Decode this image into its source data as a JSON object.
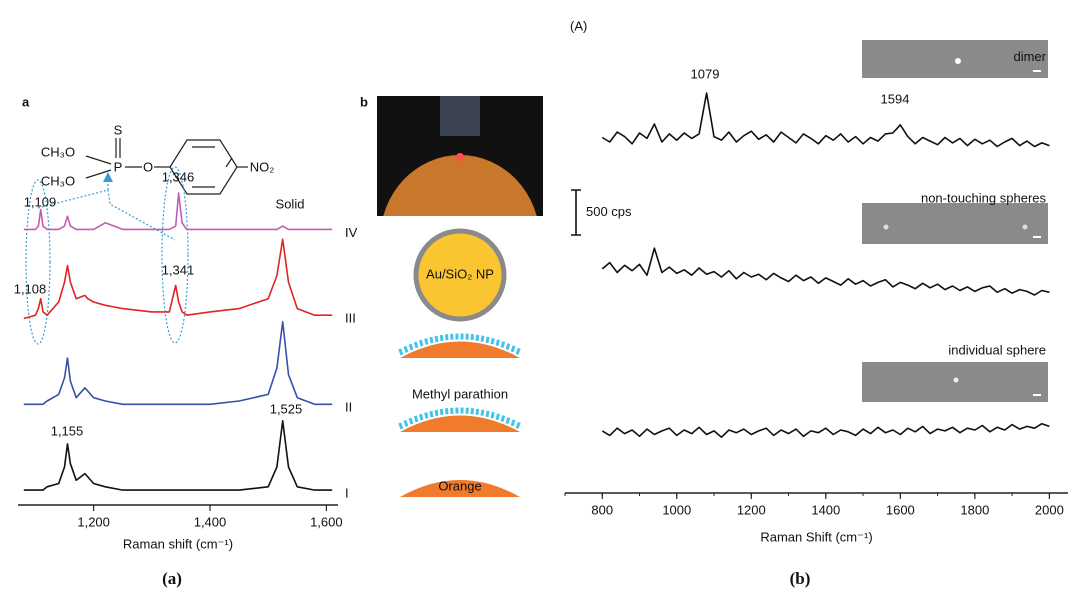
{
  "figure": {
    "captions": [
      "(a)",
      "(b)"
    ],
    "panel_labels": [
      "a",
      "b"
    ],
    "structure": [
      "CH₃O",
      "CH₃O",
      "S",
      "P",
      "O",
      "NO₂"
    ],
    "schematic": [
      "Au/SiO₂ NP",
      "Methyl parathion",
      "Orange"
    ]
  },
  "chart_data": [
    {
      "type": "line",
      "x_label": "Raman shift (cm⁻¹)",
      "x": [
        1080,
        1100,
        1105,
        1109,
        1113,
        1120,
        1140,
        1150,
        1155,
        1160,
        1170,
        1185,
        1190,
        1200,
        1220,
        1250,
        1300,
        1330,
        1341,
        1346,
        1352,
        1360,
        1400,
        1450,
        1500,
        1515,
        1525,
        1535,
        1550,
        1580,
        1600,
        1610
      ],
      "xlim": [
        1070,
        1620
      ],
      "ylim": [
        0,
        100
      ],
      "xticks": [
        {
          "value": 1200,
          "label": "1,200"
        },
        {
          "value": 1400,
          "label": "1,400"
        },
        {
          "value": 1600,
          "label": "1,600"
        }
      ],
      "series": [
        {
          "name": "I",
          "color": "#111111",
          "values": [
            3,
            3,
            3,
            3,
            3,
            4,
            5,
            10,
            17,
            11,
            6,
            8,
            7,
            5,
            4,
            3,
            3,
            3,
            3,
            3,
            3,
            3,
            3,
            3,
            4,
            10,
            24,
            10,
            4,
            3,
            3,
            3
          ]
        },
        {
          "name": "II",
          "color": "#3552a8",
          "values": [
            29,
            29,
            29,
            29,
            29,
            30,
            32,
            37,
            43,
            36,
            31,
            34,
            33,
            31,
            30,
            29,
            29,
            29,
            29,
            29,
            29,
            29,
            29,
            30,
            32,
            40,
            54,
            38,
            31,
            29,
            29,
            29
          ]
        },
        {
          "name": "III",
          "color": "#e02424",
          "values": [
            55,
            56,
            58,
            61,
            57,
            56,
            60,
            66,
            71,
            66,
            61,
            62,
            61,
            60,
            59,
            58,
            57,
            57,
            65,
            60,
            57,
            56,
            57,
            58,
            61,
            68,
            79,
            66,
            58,
            56,
            56,
            56
          ]
        },
        {
          "name": "IV",
          "color": "#c45cb4",
          "values": [
            82,
            82,
            83,
            88,
            83,
            82,
            82,
            83,
            86,
            83,
            82,
            82,
            82,
            82,
            84,
            82,
            82,
            82,
            83,
            93,
            84,
            82,
            82,
            82,
            82,
            82,
            83,
            82,
            82,
            82,
            82,
            82
          ]
        }
      ],
      "annotations": [
        "1,109",
        "1,346",
        "Solid",
        "1,108",
        "1,341",
        "1,525",
        "1,155"
      ]
    },
    {
      "type": "line",
      "panel_label": "(A)",
      "x_label": "Raman Shift (cm⁻¹)",
      "x": [
        800,
        820,
        840,
        860,
        880,
        900,
        920,
        940,
        960,
        980,
        1000,
        1020,
        1040,
        1060,
        1080,
        1100,
        1120,
        1140,
        1160,
        1180,
        1200,
        1220,
        1240,
        1260,
        1280,
        1300,
        1320,
        1340,
        1360,
        1380,
        1400,
        1420,
        1440,
        1460,
        1480,
        1500,
        1520,
        1540,
        1560,
        1580,
        1600,
        1620,
        1640,
        1660,
        1680,
        1700,
        1720,
        1740,
        1760,
        1780,
        1800,
        1820,
        1840,
        1860,
        1880,
        1900,
        1920,
        1940,
        1960,
        1980,
        2000
      ],
      "xlim": [
        700,
        2050
      ],
      "ylim": [
        0,
        4500
      ],
      "xticks": [
        800,
        1000,
        1200,
        1400,
        1600,
        1800,
        2000
      ],
      "series": [
        {
          "name": "dimer",
          "color": "#111111",
          "values": [
            3950,
            3900,
            4010,
            3960,
            3880,
            4000,
            3940,
            4100,
            3900,
            3990,
            3920,
            4000,
            3940,
            3990,
            4444,
            3960,
            3920,
            4010,
            3900,
            3970,
            4020,
            3930,
            3980,
            3900,
            4010,
            3950,
            3890,
            3990,
            3940,
            3880,
            3970,
            3920,
            3990,
            3900,
            3960,
            3880,
            3950,
            3910,
            3990,
            4000,
            4090,
            3960,
            3880,
            3950,
            3910,
            3870,
            3950,
            3890,
            3940,
            3860,
            3930,
            3880,
            3920,
            3850,
            3900,
            3940,
            3860,
            3910,
            3850,
            3890,
            3860
          ]
        },
        {
          "name": "non-touching spheres",
          "color": "#111111",
          "values": [
            2490,
            2560,
            2450,
            2530,
            2470,
            2540,
            2420,
            2720,
            2450,
            2510,
            2440,
            2480,
            2420,
            2500,
            2430,
            2460,
            2400,
            2470,
            2380,
            2450,
            2400,
            2430,
            2370,
            2440,
            2390,
            2350,
            2420,
            2360,
            2400,
            2330,
            2390,
            2350,
            2310,
            2380,
            2320,
            2360,
            2300,
            2340,
            2370,
            2290,
            2340,
            2310,
            2270,
            2330,
            2280,
            2320,
            2260,
            2300,
            2250,
            2290,
            2240,
            2280,
            2300,
            2230,
            2270,
            2220,
            2260,
            2240,
            2200,
            2250,
            2230
          ]
        },
        {
          "name": "individual sphere",
          "color": "#111111",
          "values": [
            690,
            640,
            720,
            660,
            700,
            630,
            710,
            650,
            690,
            720,
            640,
            700,
            660,
            730,
            650,
            690,
            620,
            700,
            670,
            710,
            650,
            690,
            720,
            640,
            700,
            660,
            710,
            630,
            690,
            670,
            720,
            650,
            700,
            680,
            640,
            710,
            660,
            730,
            670,
            700,
            650,
            720,
            680,
            740,
            660,
            710,
            690,
            730,
            670,
            720,
            700,
            750,
            680,
            730,
            700,
            760,
            710,
            740,
            720,
            770,
            740
          ]
        }
      ],
      "annotations": [
        "1079",
        "1594"
      ],
      "scale_bar": {
        "value": 500,
        "label": "500 cps"
      }
    }
  ]
}
